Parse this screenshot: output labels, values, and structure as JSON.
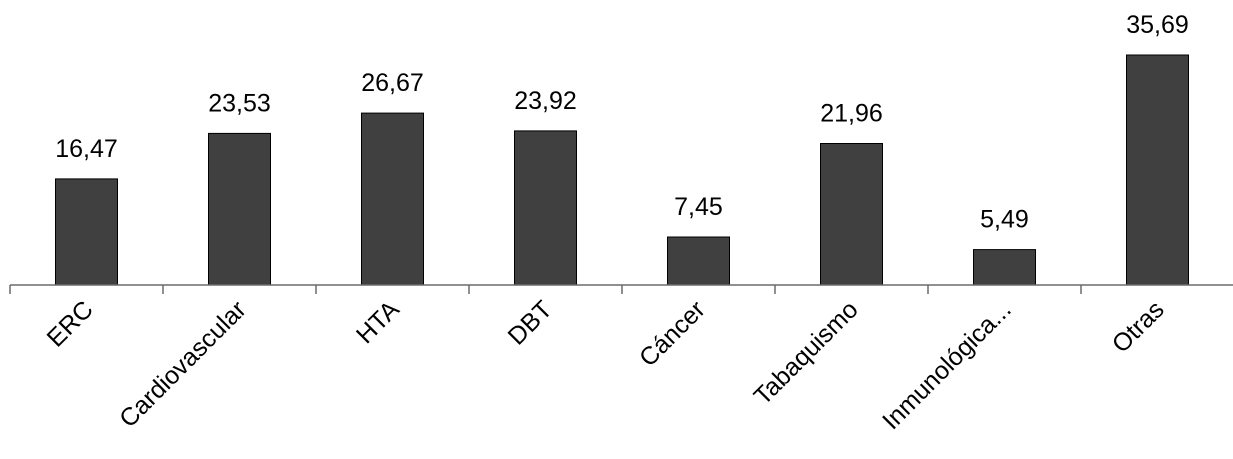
{
  "chart_data": {
    "type": "bar",
    "title": "",
    "xlabel": "",
    "ylabel": "",
    "categories": [
      "ERC",
      "Cardiovascular",
      "HTA",
      "DBT",
      "Cáncer",
      "Tabaquismo",
      "Inmunológica...",
      "Otras"
    ],
    "values": [
      16.47,
      23.53,
      26.67,
      23.92,
      7.45,
      21.96,
      5.49,
      35.69
    ],
    "value_labels": [
      "16,47",
      "23,53",
      "26,67",
      "23,92",
      "7,45",
      "21,96",
      "5,49",
      "35,69"
    ],
    "ylim": [
      0,
      35.69
    ],
    "grid": false,
    "legend": "none",
    "colors": {
      "bar": "#404040",
      "axis": "#6b6b6b",
      "text": "#000000"
    }
  }
}
